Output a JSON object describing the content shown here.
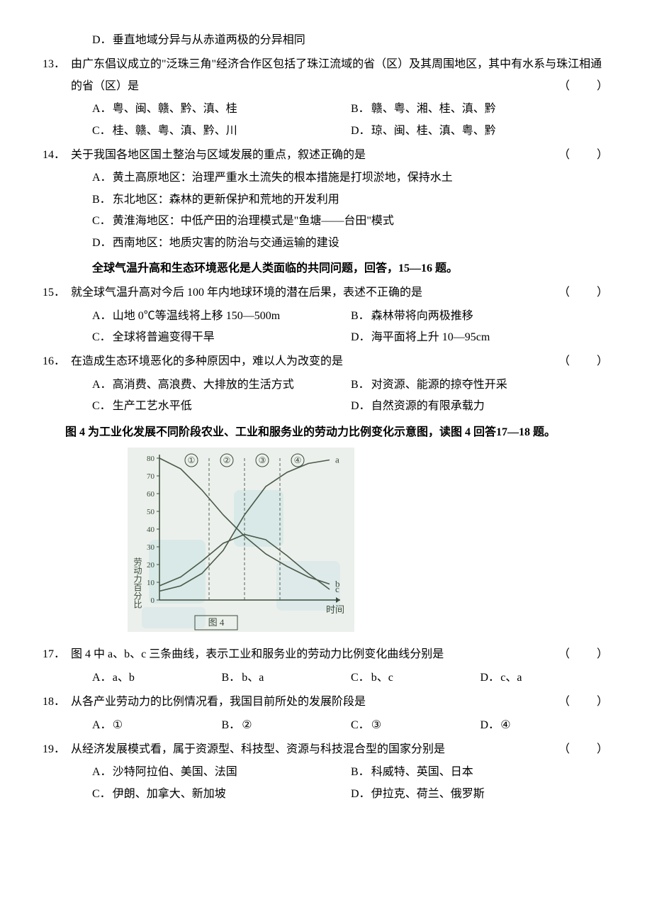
{
  "q12d": "垂直地域分异与从赤道两极的分异相同",
  "q13": {
    "num": "13．",
    "stem": "由广东倡议成立的\"泛珠三角\"经济合作区包括了珠江流域的省（区）及其周围地区，其中有水系与珠江相通的省（区）是",
    "blank": "（　　）",
    "A": "粤、闽、赣、黔、滇、桂",
    "B": "赣、粤、湘、桂、滇、黔",
    "C": "桂、赣、粤、滇、黔、川",
    "D": "琼、闽、桂、滇、粤、黔"
  },
  "q14": {
    "num": "14．",
    "stem": "关于我国各地区国土整治与区域发展的重点，叙述正确的是",
    "blank": "（　　）",
    "A": "黄土高原地区：治理严重水土流失的根本措施是打坝淤地，保持水土",
    "B": "东北地区：森林的更新保护和荒地的开发利用",
    "C": "黄淮海地区：中低产田的治理模式是\"鱼塘——台田\"模式",
    "D": "西南地区：地质灾害的防治与交通运输的建设"
  },
  "ctx15": "全球气温升高和生态环境恶化是人类面临的共同问题，回答，15—16 题。",
  "q15": {
    "num": "15．",
    "stem": "就全球气温升高对今后 100 年内地球环境的潜在后果，表述不正确的是",
    "blank": "（　　）",
    "A": "山地 0℃等温线将上移 150—500m",
    "B": "森林带将向两极推移",
    "C": "全球将普遍变得干旱",
    "D": "海平面将上升 10—95cm"
  },
  "q16": {
    "num": "16．",
    "stem": "在造成生态环境恶化的多种原因中，难以人为改变的是",
    "blank": "（　　）",
    "A": "高消费、高浪费、大排放的生活方式",
    "B": "对资源、能源的掠夺性开采",
    "C": "生产工艺水平低",
    "D": "自然资源的有限承载力"
  },
  "ctx17": "图 4 为工业化发展不同阶段农业、工业和服务业的劳动力比例变化示意图，读图 4 回答17—18 题。",
  "chart": {
    "type": "line",
    "caption": "图 4",
    "x_axis_label": "时间",
    "y_axis_label": "劳动力百分比",
    "y_ticks": [
      0,
      10,
      20,
      30,
      40,
      50,
      60,
      70,
      80
    ],
    "region_labels": [
      "①",
      "②",
      "③",
      "④"
    ],
    "region_x": [
      45,
      95,
      145,
      195
    ],
    "end_labels": [
      "a",
      "b",
      "c"
    ],
    "plot_bg": "#ecf0ec",
    "watermark": "#b8dee0",
    "axis_color": "#3a4a3a",
    "dash_color": "#556055",
    "series": {
      "a": {
        "color": "#4a5a4a",
        "pts": [
          [
            0,
            5
          ],
          [
            30,
            8
          ],
          [
            60,
            15
          ],
          [
            90,
            28
          ],
          [
            120,
            48
          ],
          [
            150,
            64
          ],
          [
            180,
            72
          ],
          [
            210,
            77
          ],
          [
            240,
            79
          ]
        ]
      },
      "b": {
        "color": "#4a5a4a",
        "pts": [
          [
            0,
            80
          ],
          [
            30,
            74
          ],
          [
            60,
            62
          ],
          [
            90,
            48
          ],
          [
            120,
            36
          ],
          [
            150,
            26
          ],
          [
            180,
            19
          ],
          [
            210,
            13
          ],
          [
            240,
            9
          ]
        ]
      },
      "c": {
        "color": "#4a5a4a",
        "pts": [
          [
            0,
            8
          ],
          [
            30,
            13
          ],
          [
            60,
            22
          ],
          [
            90,
            32
          ],
          [
            120,
            37
          ],
          [
            150,
            34
          ],
          [
            180,
            25
          ],
          [
            210,
            15
          ],
          [
            240,
            6
          ]
        ]
      }
    },
    "dash_x": [
      70,
      120,
      170
    ]
  },
  "q17": {
    "num": "17．",
    "stem": "图 4 中 a、b、c 三条曲线，表示工业和服务业的劳动力比例变化曲线分别是",
    "blank": "（　　）",
    "A": "a、b",
    "B": "b、a",
    "C": "b、c",
    "D": "c、a"
  },
  "q18": {
    "num": "18．",
    "stem": "从各产业劳动力的比例情况看，我国目前所处的发展阶段是",
    "blank": "（　　）",
    "A": "①",
    "B": "②",
    "C": "③",
    "D": "④"
  },
  "q19": {
    "num": "19．",
    "stem": "从经济发展模式看，属于资源型、科技型、资源与科技混合型的国家分别是",
    "blank": "（　　）",
    "A": "沙特阿拉伯、美国、法国",
    "B": "科威特、英国、日本",
    "C": "伊朗、加拿大、新加坡",
    "D": "伊拉克、荷兰、俄罗斯"
  },
  "labels": {
    "A": "A．",
    "B": "B．",
    "C": "C．",
    "D": "D．"
  }
}
